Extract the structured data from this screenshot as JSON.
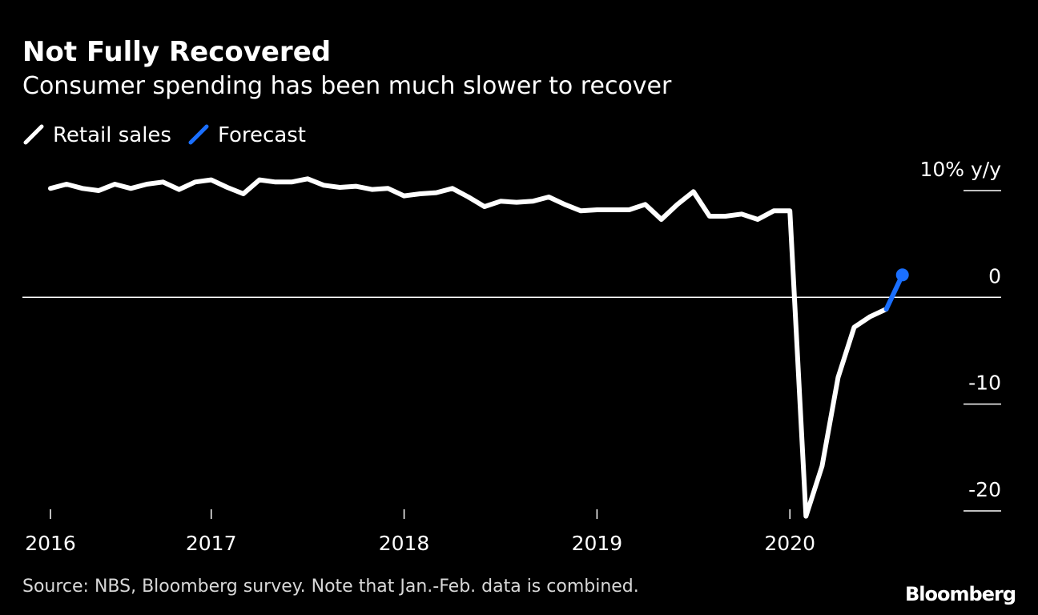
{
  "chart_data": {
    "type": "line",
    "title": "Not Fully Recovered",
    "subtitle": "Consumer spending has been much slower to recover",
    "source": "Source: NBS, Bloomberg survey. Note that Jan.-Feb. data is combined.",
    "brand": "Bloomberg",
    "categories": [
      "2016",
      null,
      null,
      null,
      null,
      null,
      null,
      null,
      null,
      null,
      "2017",
      null,
      null,
      null,
      null,
      null,
      null,
      null,
      null,
      null,
      null,
      null,
      "2018",
      null,
      null,
      null,
      null,
      null,
      null,
      null,
      null,
      null,
      null,
      null,
      "2019",
      null,
      null,
      null,
      null,
      null,
      null,
      null,
      null,
      null,
      null,
      null,
      "2020",
      null,
      null,
      null,
      null,
      null,
      null,
      null
    ],
    "series": [
      {
        "name": "Retail sales",
        "color": "#ffffff",
        "values": [
          10.2,
          10.6,
          10.2,
          10.0,
          10.6,
          10.2,
          10.6,
          10.8,
          10.1,
          10.8,
          11.0,
          10.3,
          9.7,
          11.0,
          10.8,
          10.8,
          11.1,
          10.5,
          10.3,
          10.4,
          10.1,
          10.2,
          9.5,
          9.7,
          9.8,
          10.2,
          9.4,
          8.5,
          9.0,
          8.9,
          9.0,
          9.4,
          8.7,
          8.1,
          8.2,
          8.2,
          8.2,
          8.7,
          7.3,
          8.7,
          9.9,
          7.6,
          7.6,
          7.8,
          7.3,
          8.1,
          8.1,
          -20.5,
          -15.8,
          -7.5,
          -2.8,
          -1.8,
          -1.1,
          null
        ]
      },
      {
        "name": "Forecast",
        "color": "#1a6fff",
        "values": [
          null,
          null,
          null,
          null,
          null,
          null,
          null,
          null,
          null,
          null,
          null,
          null,
          null,
          null,
          null,
          null,
          null,
          null,
          null,
          null,
          null,
          null,
          null,
          null,
          null,
          null,
          null,
          null,
          null,
          null,
          null,
          null,
          null,
          null,
          null,
          null,
          null,
          null,
          null,
          null,
          null,
          null,
          null,
          null,
          null,
          null,
          null,
          null,
          null,
          null,
          null,
          null,
          -1.1,
          2.1
        ]
      }
    ],
    "ylim": [
      -21,
      12
    ],
    "yticks": [
      {
        "value": 10,
        "label": "10% y/y"
      },
      0,
      -10,
      -20
    ]
  }
}
